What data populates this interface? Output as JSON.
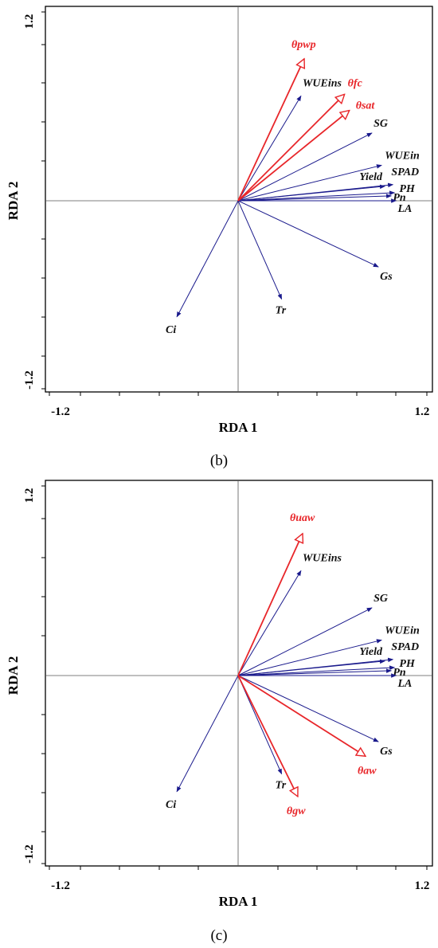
{
  "chart_data": [
    {
      "type": "scatter",
      "panel_label": "(b)",
      "xlabel": "RDA 1",
      "ylabel": "RDA 2",
      "xlim": [
        -1.2,
        1.2
      ],
      "ylim": [
        -1.2,
        1.2
      ],
      "x_tick_labels": [
        "-1.2",
        "1.2"
      ],
      "y_tick_labels": [
        "1.2",
        "-1.2"
      ],
      "arrow_series": [
        {
          "group": "response",
          "color": "#1a1a8c",
          "vectors": [
            {
              "label": "WUEins",
              "x": 0.39,
              "y": 0.65
            },
            {
              "label": "SG",
              "x": 0.83,
              "y": 0.42
            },
            {
              "label": "WUEin",
              "x": 0.89,
              "y": 0.22
            },
            {
              "label": "Yield",
              "x": 0.91,
              "y": 0.09
            },
            {
              "label": "SPAD",
              "x": 0.96,
              "y": 0.1
            },
            {
              "label": "PH",
              "x": 0.97,
              "y": 0.05
            },
            {
              "label": "Pn",
              "x": 0.95,
              "y": 0.03
            },
            {
              "label": "LA",
              "x": 0.98,
              "y": 0.0
            },
            {
              "label": "Gs",
              "x": 0.87,
              "y": -0.41
            },
            {
              "label": "Tr",
              "x": 0.27,
              "y": -0.61
            },
            {
              "label": "Ci",
              "x": -0.38,
              "y": -0.72
            }
          ]
        },
        {
          "group": "explanatory",
          "color": "#e8262a",
          "vectors": [
            {
              "label": "θpwp",
              "x": 0.41,
              "y": 0.88
            },
            {
              "label": "θfc",
              "x": 0.66,
              "y": 0.66
            },
            {
              "label": "θsat",
              "x": 0.69,
              "y": 0.56
            }
          ]
        }
      ]
    },
    {
      "type": "scatter",
      "panel_label": "(c)",
      "xlabel": "RDA 1",
      "ylabel": "RDA 2",
      "xlim": [
        -1.2,
        1.2
      ],
      "ylim": [
        -1.2,
        1.2
      ],
      "x_tick_labels": [
        "-1.2",
        "1.2"
      ],
      "y_tick_labels": [
        "1.2",
        "-1.2"
      ],
      "arrow_series": [
        {
          "group": "response",
          "color": "#1a1a8c",
          "vectors": [
            {
              "label": "WUEins",
              "x": 0.39,
              "y": 0.65
            },
            {
              "label": "SG",
              "x": 0.83,
              "y": 0.42
            },
            {
              "label": "WUEin",
              "x": 0.89,
              "y": 0.22
            },
            {
              "label": "Yield",
              "x": 0.91,
              "y": 0.09
            },
            {
              "label": "SPAD",
              "x": 0.96,
              "y": 0.1
            },
            {
              "label": "PH",
              "x": 0.97,
              "y": 0.05
            },
            {
              "label": "Pn",
              "x": 0.95,
              "y": 0.03
            },
            {
              "label": "LA",
              "x": 0.98,
              "y": 0.0
            },
            {
              "label": "Gs",
              "x": 0.87,
              "y": -0.41
            },
            {
              "label": "Tr",
              "x": 0.27,
              "y": -0.61
            },
            {
              "label": "Ci",
              "x": -0.38,
              "y": -0.72
            }
          ]
        },
        {
          "group": "explanatory",
          "color": "#e8262a",
          "vectors": [
            {
              "label": "θuaw",
              "x": 0.4,
              "y": 0.88
            },
            {
              "label": "θaw",
              "x": 0.79,
              "y": -0.5
            },
            {
              "label": "θgw",
              "x": 0.37,
              "y": -0.75
            }
          ]
        }
      ]
    }
  ]
}
